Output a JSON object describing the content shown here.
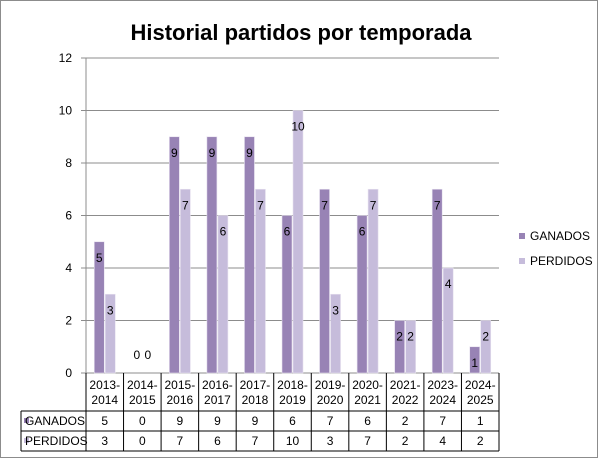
{
  "chart_data": {
    "type": "bar",
    "title": "Historial partidos por temporada",
    "categories": [
      [
        "2013-",
        "2014"
      ],
      [
        "2014-",
        "2015"
      ],
      [
        "2015-",
        "2016"
      ],
      [
        "2016-",
        "2017"
      ],
      [
        "2017-",
        "2018"
      ],
      [
        "2018-",
        "2019"
      ],
      [
        "2019-",
        "2020"
      ],
      [
        "2020-",
        "2021"
      ],
      [
        "2021-",
        "2022"
      ],
      [
        "2023-",
        "2024"
      ],
      [
        "2024-",
        "2025"
      ]
    ],
    "series": [
      {
        "name": "GANADOS",
        "values": [
          5,
          0,
          9,
          9,
          9,
          6,
          7,
          6,
          2,
          7,
          1
        ],
        "color": "#9883b5"
      },
      {
        "name": "PERDIDOS",
        "values": [
          3,
          0,
          7,
          6,
          7,
          10,
          3,
          7,
          2,
          4,
          2
        ],
        "color": "#c6bcdb"
      }
    ],
    "ylim": [
      0,
      12
    ],
    "yticks": [
      0,
      2,
      4,
      6,
      8,
      10,
      12
    ],
    "grid": true,
    "legend_position": "right",
    "data_table": true
  }
}
